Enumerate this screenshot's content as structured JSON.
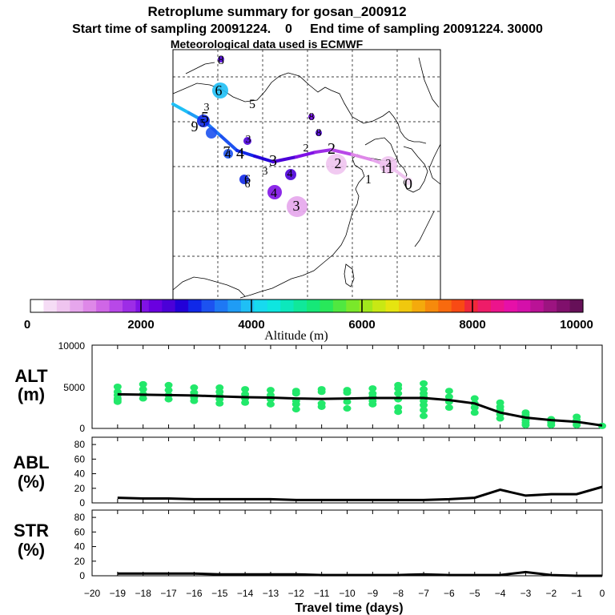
{
  "header": {
    "title": "Retroplume summary for gosan_200912",
    "line2": "Start time of sampling 20091224.    0     End time of sampling 20091224. 30000",
    "line3": "Meteorological data used is ECMWF"
  },
  "colorbar": {
    "label": "Altitude  (m)",
    "ticks": [
      "0",
      "2000",
      "4000",
      "6000",
      "8000",
      "10000"
    ],
    "min": 0,
    "max": 10000,
    "colors": [
      "#ffffff",
      "#f5dcf5",
      "#efc4ef",
      "#e6a6ec",
      "#de88e8",
      "#cf66e6",
      "#b848e8",
      "#9d2de6",
      "#8012e6",
      "#6a00e0",
      "#4b00d8",
      "#2200d8",
      "#1028e8",
      "#1c52f0",
      "#1e78f4",
      "#1f9cf5",
      "#1fbff5",
      "#17daef",
      "#0ee6e0",
      "#0ce8bc",
      "#10e89a",
      "#16e878",
      "#28e85a",
      "#50e840",
      "#7ae82a",
      "#a2e81c",
      "#c8e814",
      "#e6e410",
      "#f0c80e",
      "#f4aa0c",
      "#f68a0c",
      "#f86a0e",
      "#f84a14",
      "#f0283a",
      "#ee1c68",
      "#ec148c",
      "#e610a8",
      "#d410aa",
      "#ba1296",
      "#9c1480",
      "#80106c",
      "#661058"
    ],
    "major_lines_at": [
      2000,
      4000,
      6000,
      8000
    ]
  },
  "map": {
    "trajectory_labels": [
      {
        "text": "0",
        "size": "large",
        "alt": 300
      },
      {
        "text": "1",
        "size": "large",
        "alt": 800
      },
      {
        "text": "2",
        "size": "large",
        "alt": 1600
      },
      {
        "text": "3",
        "size": "large",
        "alt": 2600
      },
      {
        "text": "4",
        "size": "large",
        "alt": 3200
      },
      {
        "text": "5",
        "size": "large",
        "alt": 3500
      },
      {
        "text": "6",
        "size": "large",
        "alt": 3900
      },
      {
        "text": "7",
        "size": "large",
        "alt": 3600
      },
      {
        "text": "8",
        "size": "large",
        "alt": 3100
      },
      {
        "text": "9",
        "size": "large",
        "alt": 3300
      },
      {
        "text": "1",
        "size": "small",
        "alt": 700
      },
      {
        "text": "2",
        "size": "small",
        "alt": 1400
      },
      {
        "text": "3",
        "size": "small",
        "alt": 2300
      },
      {
        "text": "4",
        "size": "small",
        "alt": 2800
      },
      {
        "text": "5",
        "size": "small",
        "alt": 3300
      },
      {
        "text": "6",
        "size": "small",
        "alt": 2900
      },
      {
        "text": "8",
        "size": "small",
        "alt": 2600
      },
      {
        "text": "3",
        "size": "small",
        "alt": 2500
      },
      {
        "text": "8",
        "size": "small",
        "alt": 2400
      },
      {
        "text": "3",
        "size": "small",
        "alt": 2700
      },
      {
        "text": "2",
        "size": "small",
        "alt": 1300
      },
      {
        "text": "1",
        "size": "small",
        "alt": 700
      },
      {
        "text": "4",
        "size": "small",
        "alt": 1900
      },
      {
        "text": "4",
        "size": "small",
        "alt": 1700
      },
      {
        "text": "3",
        "size": "small",
        "alt": 600
      },
      {
        "text": "6",
        "size": "small",
        "alt": 4200
      },
      {
        "text": "5",
        "size": "small",
        "alt": 4100
      },
      {
        "text": "2",
        "size": "small",
        "alt": 1000
      }
    ]
  },
  "chart_data": [
    {
      "type": "scatter",
      "panel": "ALT",
      "ylabel_line1": "ALT",
      "ylabel_line2": "(m)",
      "xlabel": "Travel time (days)",
      "xlim": [
        -20,
        0
      ],
      "ylim": [
        0,
        10000
      ],
      "yticks": [
        0,
        5000,
        10000
      ],
      "median_line": {
        "x": [
          -19,
          -18,
          -17,
          -16,
          -15,
          -14,
          -13,
          -12,
          -11,
          -10,
          -9,
          -8,
          -7,
          -6,
          -5,
          -4,
          -3,
          -2,
          -1,
          0
        ],
        "y": [
          4100,
          4050,
          4000,
          3950,
          3850,
          3750,
          3700,
          3600,
          3550,
          3600,
          3650,
          3650,
          3650,
          3400,
          3000,
          1900,
          1300,
          1000,
          800,
          350
        ]
      },
      "scatter_points": [
        [
          -19,
          3200
        ],
        [
          -19,
          3600
        ],
        [
          -19,
          4000
        ],
        [
          -19,
          4400
        ],
        [
          -19,
          5000
        ],
        [
          -19,
          3400
        ],
        [
          -18,
          3600
        ],
        [
          -18,
          4100
        ],
        [
          -18,
          4700
        ],
        [
          -18,
          5300
        ],
        [
          -17,
          3500
        ],
        [
          -17,
          4000
        ],
        [
          -17,
          4600
        ],
        [
          -17,
          5200
        ],
        [
          -16,
          3300
        ],
        [
          -16,
          3700
        ],
        [
          -16,
          4300
        ],
        [
          -16,
          4900
        ],
        [
          -15,
          3000
        ],
        [
          -15,
          3500
        ],
        [
          -15,
          3900
        ],
        [
          -15,
          4400
        ],
        [
          -15,
          4900
        ],
        [
          -14,
          3100
        ],
        [
          -14,
          3600
        ],
        [
          -14,
          4100
        ],
        [
          -14,
          4700
        ],
        [
          -13,
          2900
        ],
        [
          -13,
          3500
        ],
        [
          -13,
          4000
        ],
        [
          -13,
          4600
        ],
        [
          -12,
          2300
        ],
        [
          -12,
          2900
        ],
        [
          -12,
          3300
        ],
        [
          -12,
          4200
        ],
        [
          -12,
          4500
        ],
        [
          -11,
          2600
        ],
        [
          -11,
          3000
        ],
        [
          -11,
          4400
        ],
        [
          -11,
          4700
        ],
        [
          -10,
          2400
        ],
        [
          -10,
          3200
        ],
        [
          -10,
          4300
        ],
        [
          -10,
          4600
        ],
        [
          -9,
          2900
        ],
        [
          -9,
          3300
        ],
        [
          -9,
          3800
        ],
        [
          -9,
          4200
        ],
        [
          -9,
          4800
        ],
        [
          -8,
          2000
        ],
        [
          -8,
          2500
        ],
        [
          -8,
          3500
        ],
        [
          -8,
          4200
        ],
        [
          -8,
          4800
        ],
        [
          -8,
          5200
        ],
        [
          -7,
          1500
        ],
        [
          -7,
          2200
        ],
        [
          -7,
          2800
        ],
        [
          -7,
          3300
        ],
        [
          -7,
          3800
        ],
        [
          -7,
          4200
        ],
        [
          -7,
          4700
        ],
        [
          -7,
          5400
        ],
        [
          -6,
          2500
        ],
        [
          -6,
          3200
        ],
        [
          -6,
          3800
        ],
        [
          -6,
          4500
        ],
        [
          -5,
          1900
        ],
        [
          -5,
          2500
        ],
        [
          -5,
          3000
        ],
        [
          -5,
          3600
        ],
        [
          -4,
          1200
        ],
        [
          -4,
          1700
        ],
        [
          -4,
          2200
        ],
        [
          -4,
          2600
        ],
        [
          -4,
          3100
        ],
        [
          -3,
          400
        ],
        [
          -3,
          700
        ],
        [
          -3,
          1000
        ],
        [
          -3,
          1300
        ],
        [
          -3,
          1600
        ],
        [
          -3,
          1900
        ],
        [
          -2,
          400
        ],
        [
          -2,
          700
        ],
        [
          -2,
          900
        ],
        [
          -2,
          1100
        ],
        [
          -1,
          400
        ],
        [
          -1,
          700
        ],
        [
          -1,
          1000
        ],
        [
          -1,
          1400
        ],
        [
          0,
          300
        ]
      ]
    },
    {
      "type": "line",
      "panel": "ABL",
      "ylabel_line1": "ABL",
      "ylabel_line2": "(%)",
      "xlim": [
        -20,
        0
      ],
      "ylim": [
        0,
        90
      ],
      "yticks": [
        0,
        20,
        40,
        60,
        80
      ],
      "x": [
        -19,
        -18,
        -17,
        -16,
        -15,
        -14,
        -13,
        -12,
        -11,
        -10,
        -9,
        -8,
        -7,
        -6,
        -5,
        -4,
        -3,
        -2,
        -1,
        0
      ],
      "y": [
        7,
        6,
        6,
        5,
        5,
        5,
        5,
        4,
        4,
        4,
        4,
        4,
        4,
        5,
        7,
        18,
        10,
        12,
        12,
        22
      ]
    },
    {
      "type": "line",
      "panel": "STR",
      "ylabel_line1": "STR",
      "ylabel_line2": "(%)",
      "xlim": [
        -20,
        0
      ],
      "ylim": [
        0,
        90
      ],
      "yticks": [
        0,
        20,
        40,
        60,
        80
      ],
      "x": [
        -19,
        -18,
        -17,
        -16,
        -15,
        -14,
        -13,
        -12,
        -11,
        -10,
        -9,
        -8,
        -7,
        -6,
        -5,
        -4,
        -3,
        -2,
        -1,
        0
      ],
      "y": [
        3,
        3,
        3,
        3,
        2,
        2,
        2,
        2,
        1,
        1,
        1,
        1,
        2,
        1,
        1,
        1,
        5,
        1,
        0,
        0
      ]
    }
  ],
  "xaxis": {
    "tick_labels": [
      "−20",
      "−19",
      "−18",
      "−17",
      "−16",
      "−15",
      "−14",
      "−13",
      "−12",
      "−11",
      "−10",
      "−9",
      "−8",
      "−7",
      "−6",
      "−5",
      "−4",
      "−3",
      "−2",
      "−1",
      "0"
    ]
  }
}
